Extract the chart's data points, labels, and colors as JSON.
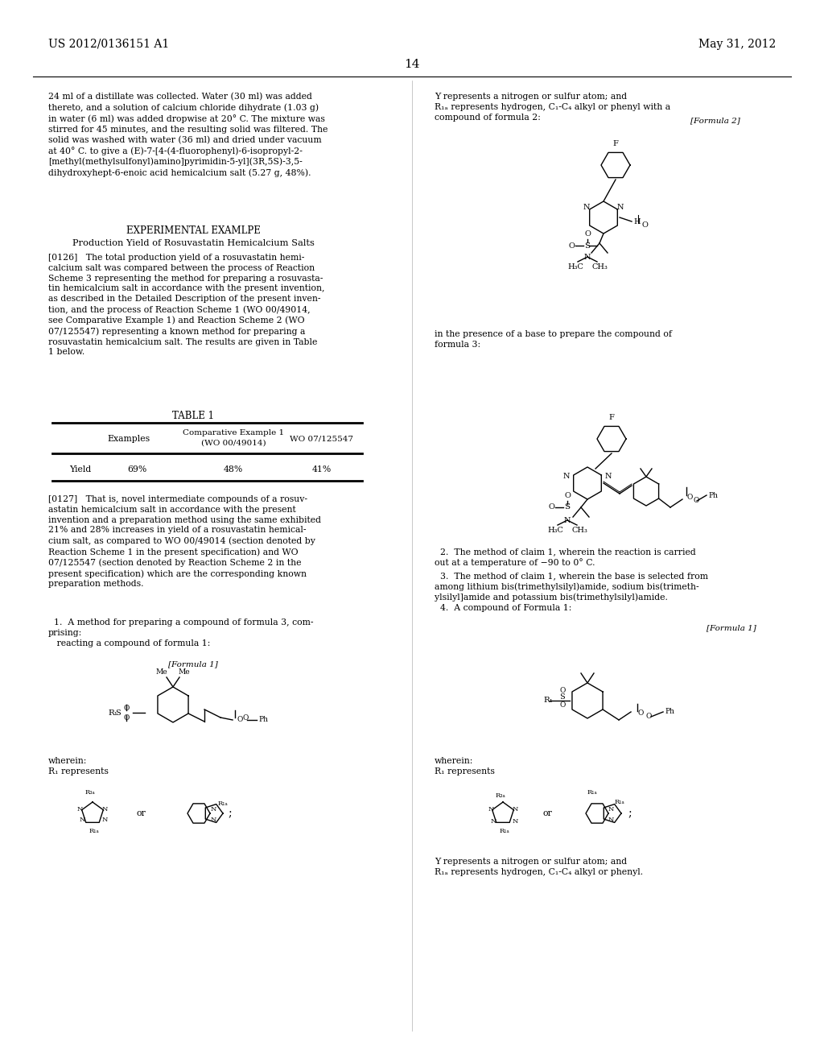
{
  "background_color": "#ffffff",
  "header_left": "US 2012/0136151 A1",
  "header_right": "May 31, 2012",
  "page_number": "14",
  "figsize": [
    10.24,
    13.2
  ],
  "dpi": 100
}
